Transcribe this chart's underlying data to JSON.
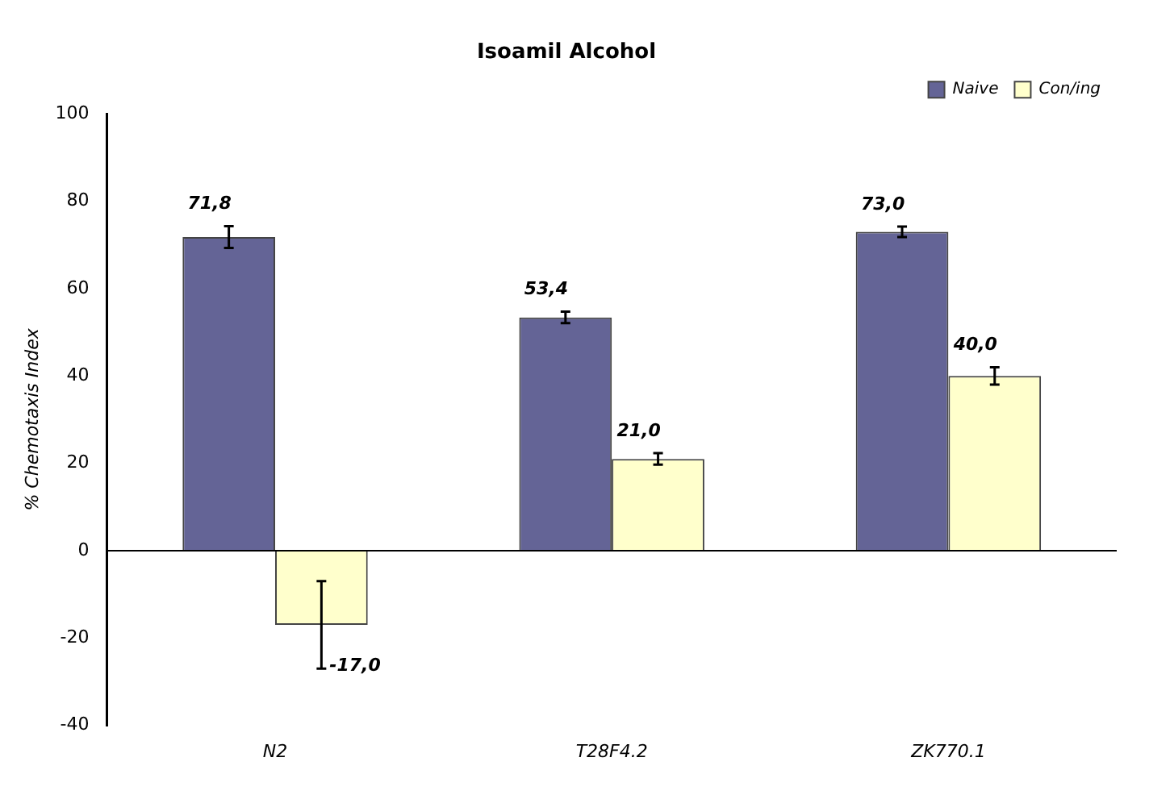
{
  "chart_data": {
    "type": "bar",
    "title": "Isoamil Alcohol",
    "ylabel": "% Chemotaxis Index",
    "categories": [
      "N2",
      "T28F4.2",
      "ZK770.1"
    ],
    "series": [
      {
        "name": "Naive",
        "color": "#646496",
        "values": [
          71.8,
          53.4,
          73.0
        ],
        "errors": [
          2.5,
          1.3,
          1.2
        ],
        "value_labels": [
          "71,8",
          "53,4",
          "73,0"
        ]
      },
      {
        "name": "Con/ing",
        "color": "#ffffcc",
        "values": [
          -17.0,
          21.0,
          40.0
        ],
        "errors": [
          10,
          1.3,
          2
        ],
        "value_labels": [
          "-17,0",
          "21,0",
          "40,0"
        ]
      }
    ],
    "ylim": [
      -40,
      100
    ],
    "yticks": [
      -40,
      -20,
      0,
      20,
      40,
      60,
      80,
      100
    ],
    "ref_lines": [
      {
        "axis": "y",
        "value": 0,
        "color": "#000000"
      }
    ],
    "grid": false,
    "legend": "top right"
  }
}
